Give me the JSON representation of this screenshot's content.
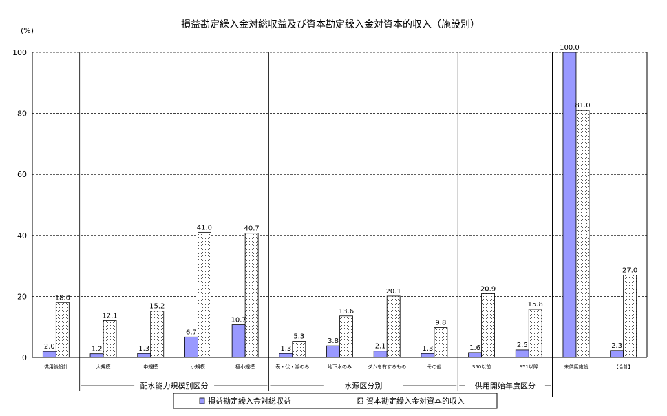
{
  "chart_data": {
    "type": "bar",
    "title": "損益勘定繰入金対総収益及び資本勘定繰入金対資本的収入（施設別）",
    "ylabel": "(%)",
    "ylim": [
      0,
      100
    ],
    "yticks": [
      0,
      20,
      40,
      60,
      80,
      100
    ],
    "grid": true,
    "legend_position": "bottom",
    "categories": [
      "供用後設計",
      "大規模",
      "中規模",
      "小規模",
      "極小規模",
      "表・伏・湖のみ",
      "地下水のみ",
      "ダムを有するもの",
      "その他",
      "S50以前",
      "S51以降",
      "未供用施設",
      "【合計】"
    ],
    "groups": [
      {
        "label": "配水能力規模別区分"
      },
      {
        "label": "水源区分別"
      },
      {
        "label": "供用開始年度区分"
      }
    ],
    "series": [
      {
        "name": "損益勘定繰入金対総収益",
        "color": "#9999ff",
        "values": [
          2.0,
          1.2,
          1.3,
          6.7,
          10.7,
          1.3,
          3.8,
          2.1,
          1.3,
          1.6,
          2.5,
          100.0,
          2.3
        ]
      },
      {
        "name": "資本勘定繰入金対資本的収入",
        "color": "#d8d8d8",
        "values": [
          18.0,
          12.1,
          15.2,
          41.0,
          40.7,
          5.3,
          13.6,
          20.1,
          9.8,
          20.9,
          15.8,
          81.0,
          27.0
        ]
      }
    ],
    "value_labels": [
      [
        "2.0",
        "1.2",
        "1.3",
        "6.7",
        "10.7",
        "1.3",
        "3.8",
        "2.1",
        "1.3",
        "1.6",
        "2.5",
        "100.0",
        "2.3"
      ],
      [
        "18.0",
        "12.1",
        "15.2",
        "41.0",
        "40.7",
        "5.3",
        "13.6",
        "20.1",
        "9.8",
        "20.9",
        "15.8",
        "81.0",
        "27.0"
      ]
    ]
  }
}
